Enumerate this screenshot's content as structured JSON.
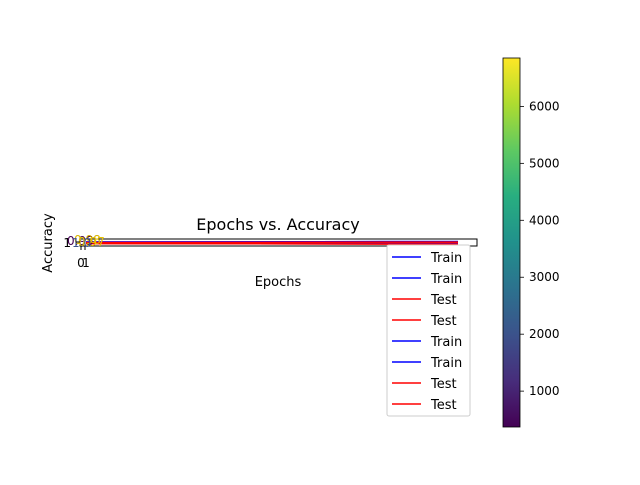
{
  "chart_data": {
    "type": "line",
    "title": "Epochs vs. Accuracy",
    "xlabel": "Epochs",
    "ylabel": "Accuracy",
    "x_ticks": [
      "0",
      "1"
    ],
    "y_ticks": [
      "1"
    ],
    "grid": false,
    "series": [
      {
        "name": "Train",
        "color": "#0000ff"
      },
      {
        "name": "Train",
        "color": "#0000ff"
      },
      {
        "name": "Test",
        "color": "#ff0000"
      },
      {
        "name": "Test",
        "color": "#ff0000"
      },
      {
        "name": "Train",
        "color": "#0000ff"
      },
      {
        "name": "Train",
        "color": "#0000ff"
      },
      {
        "name": "Test",
        "color": "#ff0000"
      },
      {
        "name": "Test",
        "color": "#ff0000"
      }
    ],
    "legend": {
      "placement": "bottom-right"
    },
    "colorbar": {
      "colormap": "viridis",
      "range": [
        370,
        6850
      ],
      "ticks": [
        1000,
        2000,
        3000,
        4000,
        5000,
        6000
      ],
      "tick_labels": [
        "1000",
        "2000",
        "3000",
        "4000",
        "5000",
        "6000"
      ]
    },
    "overlapping_labels": [
      "0.95",
      "0.98",
      "0.97",
      "1.0"
    ]
  }
}
